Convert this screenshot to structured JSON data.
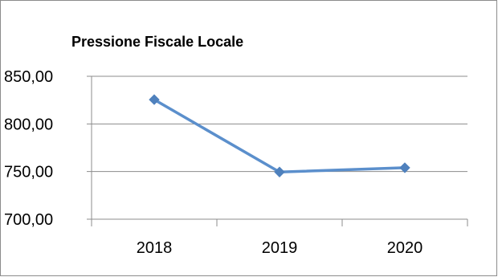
{
  "chart_data": {
    "type": "line",
    "title": "Pressione Fiscale Locale",
    "categories": [
      "2018",
      "2019",
      "2020"
    ],
    "series": [
      {
        "values": [
          825.5,
          749.5,
          754.0
        ]
      }
    ],
    "ytick_labels": [
      "700,00",
      "750,00",
      "800,00",
      "850,00"
    ],
    "yticks": [
      700,
      750,
      800,
      850
    ],
    "ylim": [
      700,
      850
    ],
    "xlabel": "",
    "ylabel": "",
    "grid": true,
    "legend": "none",
    "colors": {
      "line": "#5b8fcc",
      "marker": "#4f81bd",
      "grid": "#8c8c8c",
      "axis": "#8c8c8c"
    }
  }
}
